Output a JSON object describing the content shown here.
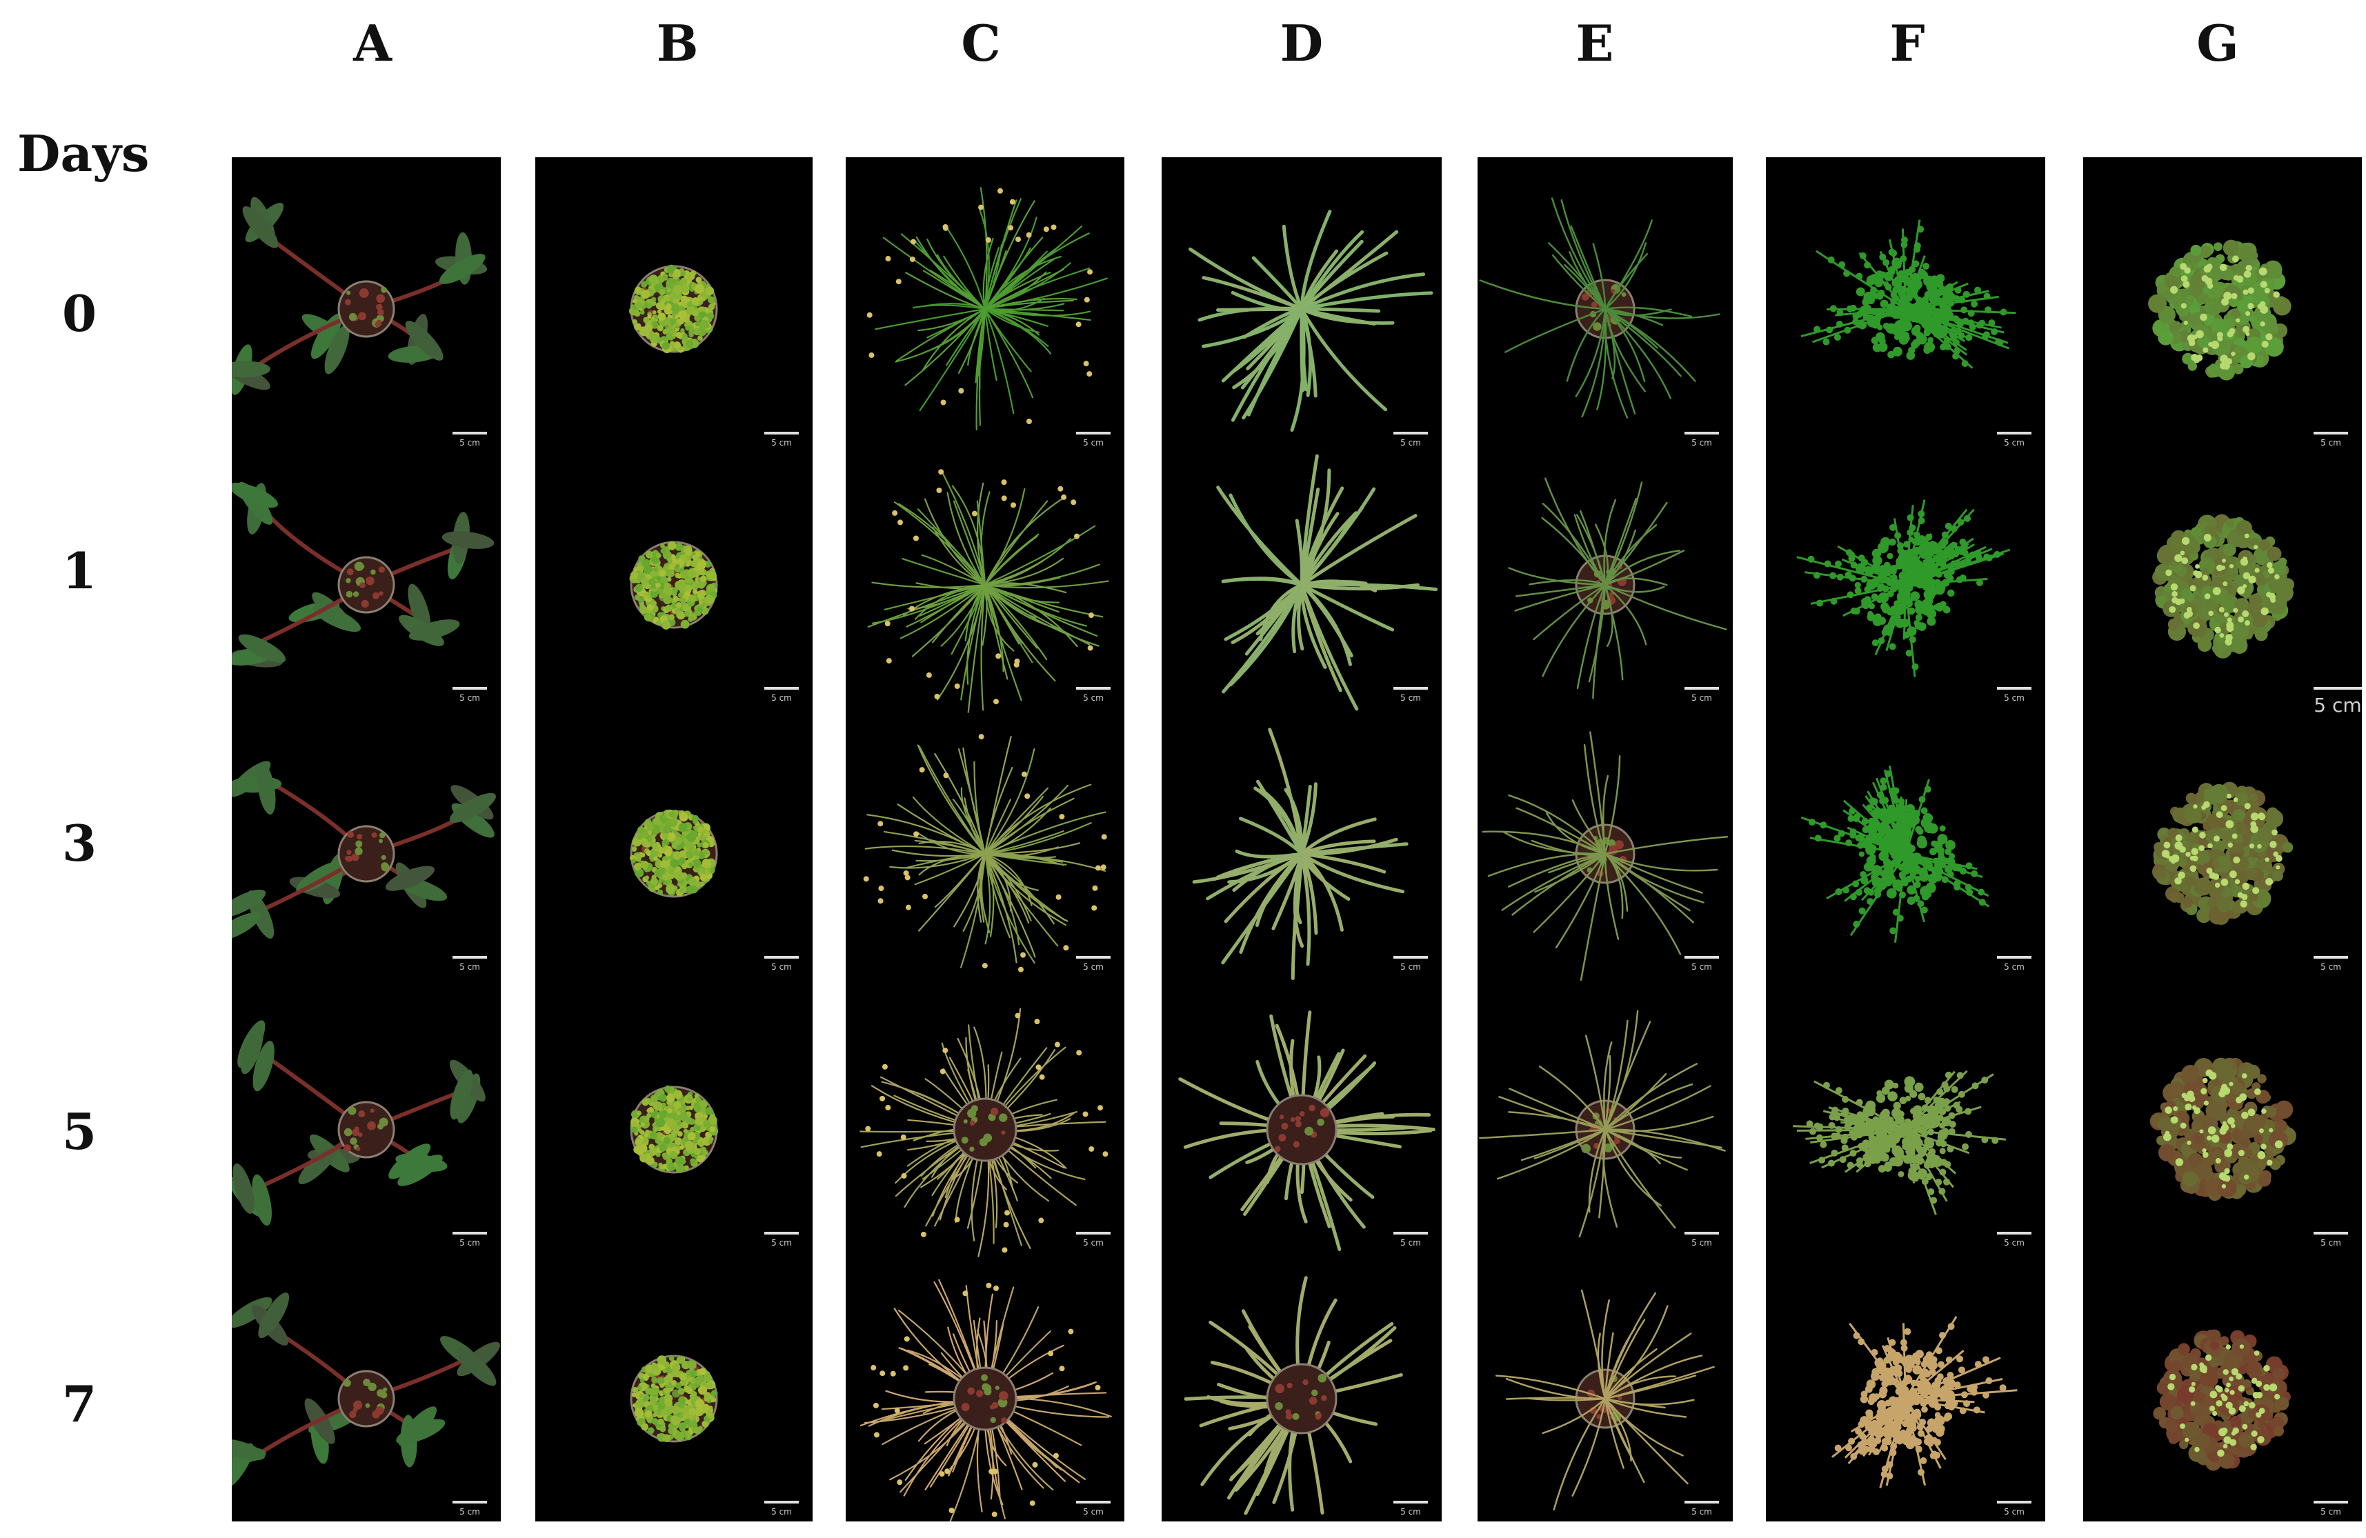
{
  "columns": [
    "A",
    "B",
    "C",
    "D",
    "E",
    "F",
    "G"
  ],
  "days_header": "Days",
  "days": [
    "0",
    "1",
    "3",
    "5",
    "7"
  ],
  "scale_bar_label": "5 cm",
  "colors": {
    "background": "#000000",
    "healthy_green": "#3f9a2a",
    "yellow_green": "#b9c43a",
    "dried_tan": "#c7a56a",
    "stem_red": "#7a2f2a"
  }
}
